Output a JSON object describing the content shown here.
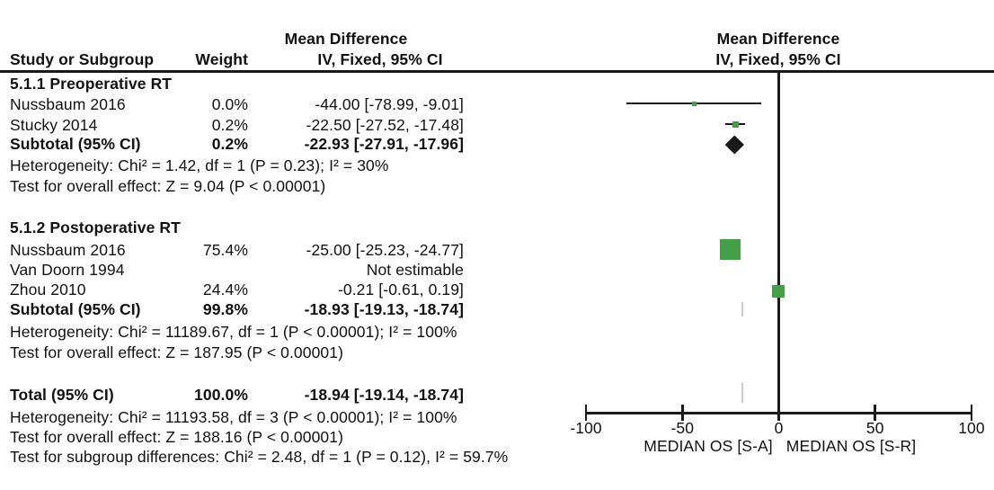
{
  "table": {
    "headers": {
      "study": "Study or Subgroup",
      "weight": "Weight",
      "effect_line1": "Mean Difference",
      "effect_line2": "IV, Fixed, 95% CI",
      "plot_line1": "Mean Difference",
      "plot_line2": "IV, Fixed, 95% CI"
    },
    "sections": [
      {
        "title": "5.1.1 Preoperative RT",
        "rows": [
          {
            "study": "Nussbaum 2016",
            "weight": "0.0%",
            "effect": "-44.00 [-78.99, -9.01]"
          },
          {
            "study": "Stucky 2014",
            "weight": "0.2%",
            "effect": "-22.50 [-27.52, -17.48]"
          }
        ],
        "subtotal": {
          "study": "Subtotal (95% CI)",
          "weight": "0.2%",
          "effect": "-22.93 [-27.91, -17.96]"
        },
        "heterogeneity": "Heterogeneity: Chi² = 1.42, df = 1 (P = 0.23); I² = 30%",
        "overall": "Test for overall effect: Z = 9.04 (P < 0.00001)"
      },
      {
        "title": "5.1.2 Postoperative RT",
        "rows": [
          {
            "study": "Nussbaum 2016",
            "weight": "75.4%",
            "effect": "-25.00 [-25.23, -24.77]"
          },
          {
            "study": "Van Doorn 1994",
            "weight": "",
            "effect": "Not estimable"
          },
          {
            "study": "Zhou 2010",
            "weight": "24.4%",
            "effect": "-0.21 [-0.61, 0.19]"
          }
        ],
        "subtotal": {
          "study": "Subtotal (95% CI)",
          "weight": "99.8%",
          "effect": "-18.93 [-19.13, -18.74]"
        },
        "heterogeneity": "Heterogeneity: Chi² = 11189.67, df = 1 (P < 0.00001); I² = 100%",
        "overall": "Test for overall effect: Z = 187.95 (P < 0.00001)"
      }
    ],
    "total": {
      "row": {
        "study": "Total (95% CI)",
        "weight": "100.0%",
        "effect": "-18.94 [-19.14, -18.74]"
      },
      "heterogeneity": "Heterogeneity: Chi² = 11193.58, df = 3 (P < 0.00001); I² = 100%",
      "overall": "Test for overall effect: Z = 188.16 (P < 0.00001)",
      "subgroup": "Test for subgroup differences: Chi² = 2.48, df = 1 (P = 0.12), I² = 59.7%"
    }
  },
  "axis": {
    "tick_labels": [
      "-100",
      "-50",
      "0",
      "50",
      "100"
    ],
    "caption_left": "MEDIAN OS [S-A]",
    "caption_right": "MEDIAN OS [S-R]"
  },
  "colors": {
    "marker_green": "#43a047",
    "diamond_black": "#1a1a1a",
    "narrow_diamond_gray": "#cbcbcb",
    "line_black": "#1a1a1a"
  },
  "chart_data": {
    "type": "forest",
    "effect_measure": "Mean Difference, IV, Fixed, 95% CI",
    "xlim": [
      -100,
      100
    ],
    "x_ticks": [
      -100,
      -50,
      0,
      50,
      100
    ],
    "xlabel_left": "MEDIAN OS [S-A]",
    "xlabel_right": "MEDIAN OS [S-R]",
    "grid": false,
    "groups": [
      {
        "name": "5.1.1 Preoperative RT",
        "studies": [
          {
            "study": "Nussbaum 2016",
            "weight_pct": 0.0,
            "md": -44.0,
            "ci": [
              -78.99,
              -9.01
            ]
          },
          {
            "study": "Stucky 2014",
            "weight_pct": 0.2,
            "md": -22.5,
            "ci": [
              -27.52,
              -17.48
            ]
          }
        ],
        "subtotal": {
          "weight_pct": 0.2,
          "md": -22.93,
          "ci": [
            -27.91,
            -17.96
          ]
        },
        "heterogeneity": {
          "chi2": 1.42,
          "df": 1,
          "p": "0.23",
          "i2": "30%"
        },
        "overall_effect": {
          "z": 9.04,
          "p": "< 0.00001"
        }
      },
      {
        "name": "5.1.2 Postoperative RT",
        "studies": [
          {
            "study": "Nussbaum 2016",
            "weight_pct": 75.4,
            "md": -25.0,
            "ci": [
              -25.23,
              -24.77
            ]
          },
          {
            "study": "Van Doorn 1994",
            "weight_pct": null,
            "md": null,
            "ci": null,
            "note": "Not estimable"
          },
          {
            "study": "Zhou 2010",
            "weight_pct": 24.4,
            "md": -0.21,
            "ci": [
              -0.61,
              0.19
            ]
          }
        ],
        "subtotal": {
          "weight_pct": 99.8,
          "md": -18.93,
          "ci": [
            -19.13,
            -18.74
          ]
        },
        "heterogeneity": {
          "chi2": 11189.67,
          "df": 1,
          "p": "< 0.00001",
          "i2": "100%"
        },
        "overall_effect": {
          "z": 187.95,
          "p": "< 0.00001"
        }
      }
    ],
    "total": {
      "weight_pct": 100.0,
      "md": -18.94,
      "ci": [
        -19.14,
        -18.74
      ],
      "heterogeneity": {
        "chi2": 11193.58,
        "df": 3,
        "p": "< 0.00001",
        "i2": "100%"
      },
      "overall_effect": {
        "z": 188.16,
        "p": "< 0.00001"
      },
      "subgroup_differences": {
        "chi2": 2.48,
        "df": 1,
        "p": "0.12",
        "i2": "59.7%"
      }
    }
  }
}
